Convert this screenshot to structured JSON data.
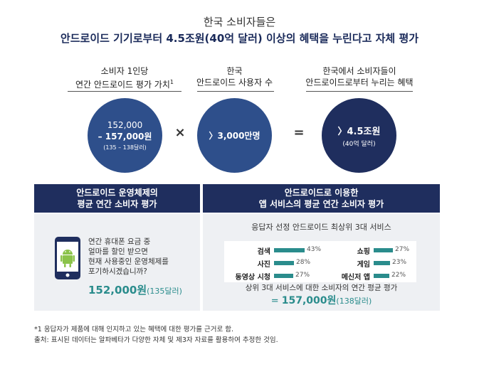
{
  "header": {
    "subtitle": "한국 소비자들은",
    "title": "안드로이드 기기로부터 4.5조원(40억 달러) 이상의 혜택을 누린다고 자체 평가"
  },
  "columns": {
    "col1": {
      "line1": "소비자 1인당",
      "line2": "연간 안드로이드 평가 가치",
      "footnote_mark": "1"
    },
    "col2": {
      "line1": "한국",
      "line2": "안드로이드 사용자 수"
    },
    "col3": {
      "line1": "한국에서 소비자들이",
      "line2": "안드로이드로부터 누리는 혜택"
    }
  },
  "circles": {
    "c1": {
      "line1": "152,000",
      "line2": "– 157,000원",
      "line3": "(135 – 138달러)"
    },
    "c2": {
      "line1": "〉3,000만명"
    },
    "c3": {
      "line1": "〉4.5조원",
      "line2": "(40억 달러)"
    }
  },
  "operators": {
    "multiply": "×",
    "equals": "="
  },
  "left_panel": {
    "header_line1": "안드로이드 운영체제의",
    "header_line2": "평균 연간 소비자 평가",
    "question_lines": [
      "연간 휴대폰 요금 중",
      "얼마를 할인 받으면",
      "현재 사용중인 운영체제를",
      "포기하시겠습니까?"
    ],
    "value_main": "152,000원",
    "value_sub": "(135달러)",
    "phone_icon": "android-phone-icon"
  },
  "right_panel": {
    "header_line1": "안드로이드로 이용한",
    "header_line2": "앱 서비스의 평균 연간 소비자 평가",
    "chart_title": "응답자 선정 안드로이드 최상위 3대 서비스",
    "summary_label": "상위 3대 서비스에 대한 소비자의 연간 평균 평가",
    "summary_prefix": "= ",
    "summary_value": "157,000원",
    "summary_sub": "(138달러)",
    "bar_color": "#2a8c8c"
  },
  "chart_data": {
    "type": "bar",
    "title": "응답자 선정 안드로이드 최상위 3대 서비스",
    "categories": [
      "검색",
      "사진",
      "동영상 시청",
      "쇼핑",
      "게임",
      "메신저 앱"
    ],
    "values": [
      43,
      28,
      27,
      27,
      23,
      22
    ],
    "labels": [
      "43%",
      "28%",
      "27%",
      "27%",
      "23%",
      "22%"
    ]
  },
  "footer": {
    "note1": "*1 응답자가 제품에 대해 인지하고 있는 혜택에 대한 평가를 근거로 함.",
    "note2": "출처: 표시된 데이터는 알파베타가 다양한 자체 및 제3자 자료를 활용하여 추정한 것임."
  }
}
